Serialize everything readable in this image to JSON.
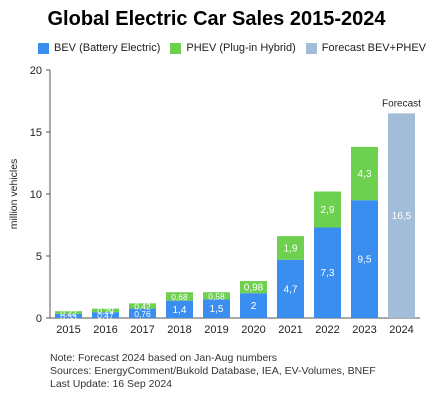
{
  "chart_data": {
    "type": "bar",
    "stacked": true,
    "title": "Global Electric Car Sales 2015-2024",
    "xlabel": "",
    "ylabel": "million vehicles",
    "ylim": [
      0,
      20
    ],
    "yticks": [
      0,
      5,
      10,
      15,
      20
    ],
    "grid": false,
    "legend_position": "top",
    "categories": [
      "2015",
      "2016",
      "2017",
      "2018",
      "2019",
      "2020",
      "2021",
      "2022",
      "2023",
      "2024"
    ],
    "series": [
      {
        "name": "BEV (Battery Electric)",
        "color": "#3a8ef0",
        "values": [
          0.33,
          0.47,
          0.76,
          1.4,
          1.5,
          2,
          4.7,
          7.3,
          9.5,
          null
        ],
        "labels": [
          "0,33",
          "0,47",
          "0,76",
          "1,4",
          "1,5",
          "2",
          "4,7",
          "7,3",
          "9,5",
          ""
        ]
      },
      {
        "name": "PHEV (Plug-in Hybrid)",
        "color": "#6dd14f",
        "values": [
          0.22,
          0.29,
          0.42,
          0.68,
          0.58,
          0.98,
          1.9,
          2.9,
          4.3,
          null
        ],
        "labels": [
          "0,22",
          "0,29",
          "0,42",
          "0,68",
          "0,58",
          "0,98",
          "1,9",
          "2,9",
          "4,3",
          ""
        ]
      },
      {
        "name": "Forecast BEV+PHEV",
        "color": "#a3bcd8",
        "values": [
          null,
          null,
          null,
          null,
          null,
          null,
          null,
          null,
          null,
          16.5
        ],
        "labels": [
          "",
          "",
          "",
          "",
          "",
          "",
          "",
          "",
          "",
          "16,5"
        ]
      }
    ],
    "annotations": [
      {
        "text": "Forecast",
        "category": "2024"
      }
    ]
  },
  "notes": [
    "Note: Forecast 2024 based on Jan-Aug numbers",
    "Sources: EnergyComment/Bukold Database, IEA, EV-Volumes, BNEF",
    "Last Update: 16 Sep 2024"
  ]
}
